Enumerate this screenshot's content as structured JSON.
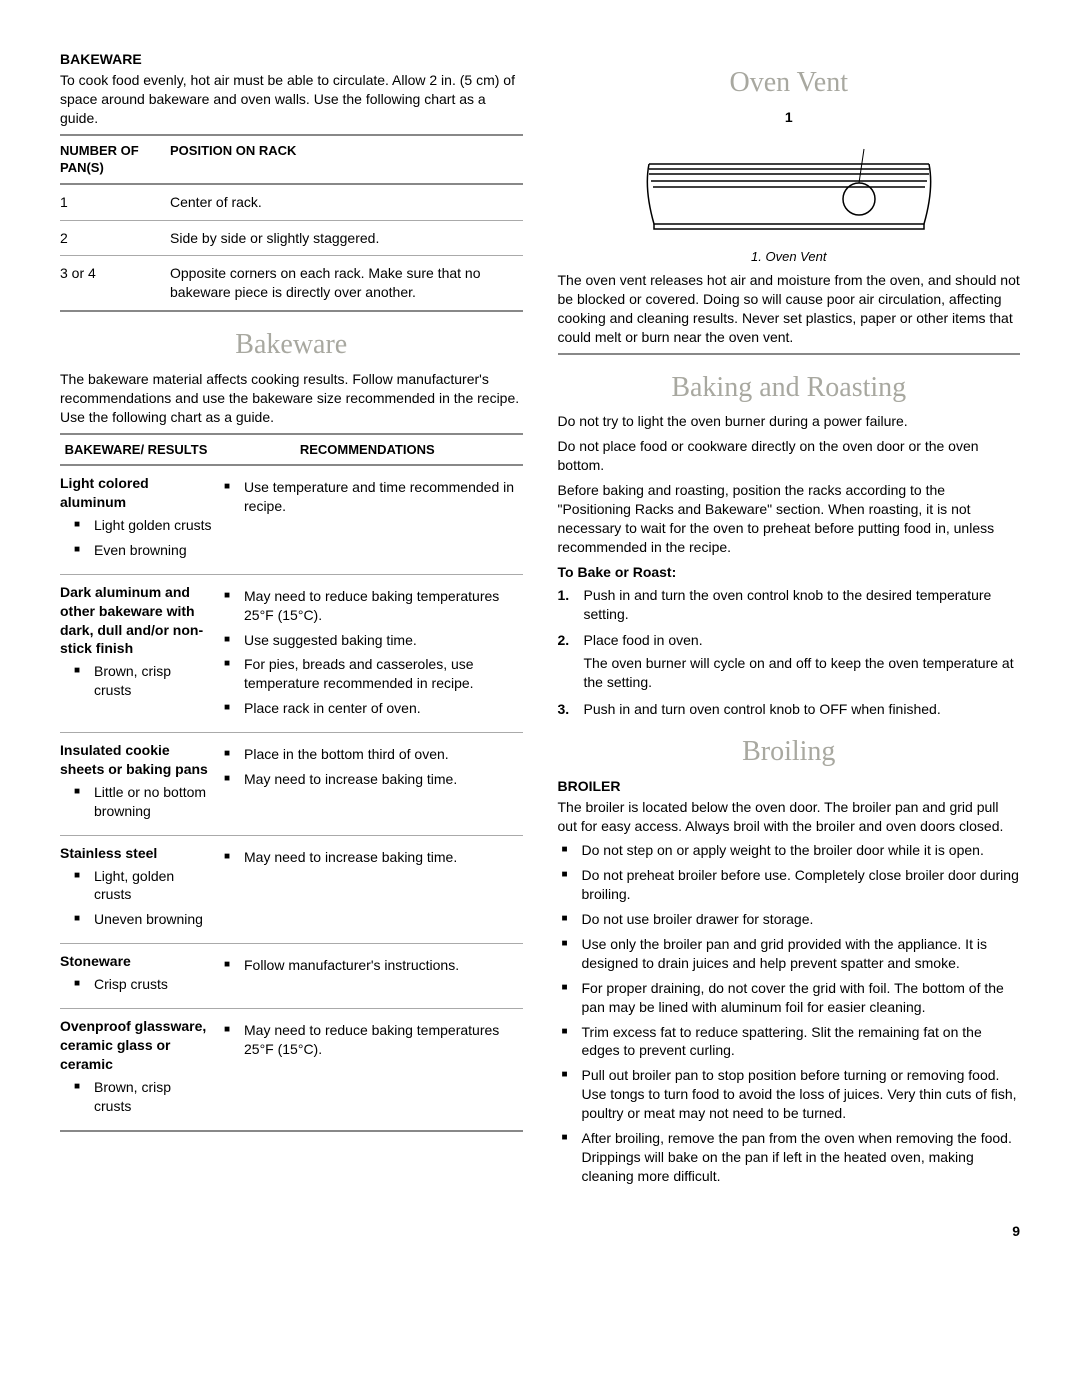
{
  "left": {
    "bakeware_section": {
      "heading": "BAKEWARE",
      "intro": "To cook food evenly, hot air must be able to circulate. Allow 2 in. (5 cm) of space around bakeware and oven walls. Use the following chart as a guide.",
      "pans_table": {
        "col1": "NUMBER OF PAN(S)",
        "col2": "POSITION ON RACK",
        "rows": [
          {
            "n": "1",
            "pos": "Center of rack."
          },
          {
            "n": "2",
            "pos": "Side by side or slightly staggered."
          },
          {
            "n": "3 or 4",
            "pos": "Opposite corners on each rack. Make sure that no bakeware piece is directly over another."
          }
        ]
      }
    },
    "bakeware_title": "Bakeware",
    "bakeware_intro2": "The bakeware material affects cooking results. Follow manufacturer's recommendations and use the bakeware size recommended in the recipe. Use the following chart as a guide.",
    "bw_table": {
      "col1": "BAKEWARE/ RESULTS",
      "col2": "RECOMMENDATIONS",
      "rows": [
        {
          "name": "Light colored aluminum",
          "results": [
            "Light golden crusts",
            "Even browning"
          ],
          "recs": [
            "Use temperature and time recommended in recipe."
          ]
        },
        {
          "name": "Dark aluminum and other bakeware with dark, dull and/or non-stick finish",
          "results": [
            "Brown, crisp crusts"
          ],
          "recs": [
            "May need to reduce baking temperatures 25°F (15°C).",
            "Use suggested baking time.",
            "For pies, breads and casseroles, use temperature recommended in recipe.",
            "Place rack in center of oven."
          ]
        },
        {
          "name": "Insulated cookie sheets or baking pans",
          "results": [
            "Little or no bottom browning"
          ],
          "recs": [
            "Place in the bottom third of oven.",
            "May need to increase baking time."
          ]
        },
        {
          "name": "Stainless steel",
          "results": [
            "Light, golden crusts",
            "Uneven browning"
          ],
          "recs": [
            "May need to increase baking time."
          ]
        },
        {
          "name": "Stoneware",
          "results": [
            "Crisp crusts"
          ],
          "recs": [
            "Follow manufacturer's instructions."
          ]
        },
        {
          "name": "Ovenproof glassware, ceramic glass or ceramic",
          "results": [
            "Brown, crisp crusts"
          ],
          "recs": [
            "May need to reduce baking temperatures 25°F (15°C)."
          ]
        }
      ]
    }
  },
  "right": {
    "oven_vent": {
      "title": "Oven Vent",
      "fig_label": "1",
      "caption": "1. Oven Vent",
      "text": "The oven vent releases hot air and moisture from the oven, and should not be blocked or covered. Doing so will cause poor air circulation, affecting cooking and cleaning results. Never set plastics, paper or other items that could melt or burn near the oven vent."
    },
    "baking": {
      "title": "Baking and Roasting",
      "p1": "Do not try to light the oven burner during a power failure.",
      "p2": "Do not place food or cookware directly on the oven door or the oven bottom.",
      "p3": "Before baking and roasting, position the racks according to the \"Positioning Racks and Bakeware\" section. When roasting, it is not necessary to wait for the oven to preheat before putting food in, unless recommended in the recipe.",
      "sub": "To Bake or Roast:",
      "steps": [
        {
          "t": "Push in and turn the oven control knob to the desired temperature setting."
        },
        {
          "t": "Place food in oven.",
          "note": "The oven burner will cycle on and off to keep the oven temperature at the setting."
        },
        {
          "t": "Push in and turn oven control knob to OFF when finished."
        }
      ]
    },
    "broiling": {
      "title": "Broiling",
      "heading": "BROILER",
      "intro": "The broiler is located below the oven door. The broiler pan and grid pull out for easy access. Always broil with the broiler and oven doors closed.",
      "items": [
        "Do not step on or apply weight to the broiler door while it is open.",
        "Do not preheat broiler before use. Completely close broiler door during broiling.",
        "Do not use broiler drawer for storage.",
        "Use only the broiler pan and grid provided with the appliance. It is designed to drain juices and help prevent spatter and smoke.",
        "For proper draining, do not cover the grid with foil. The bottom of the pan may be lined with aluminum foil for easier cleaning.",
        "Trim excess fat to reduce spattering. Slit the remaining fat on the edges to prevent curling.",
        "Pull out broiler pan to stop position before turning or removing food. Use tongs to turn food to avoid the loss of juices. Very thin cuts of fish, poultry or meat may not need to be turned.",
        "After broiling, remove the pan from the oven when removing the food. Drippings will bake on the pan if left in the heated oven, making cleaning more difficult."
      ]
    }
  },
  "page_number": "9"
}
